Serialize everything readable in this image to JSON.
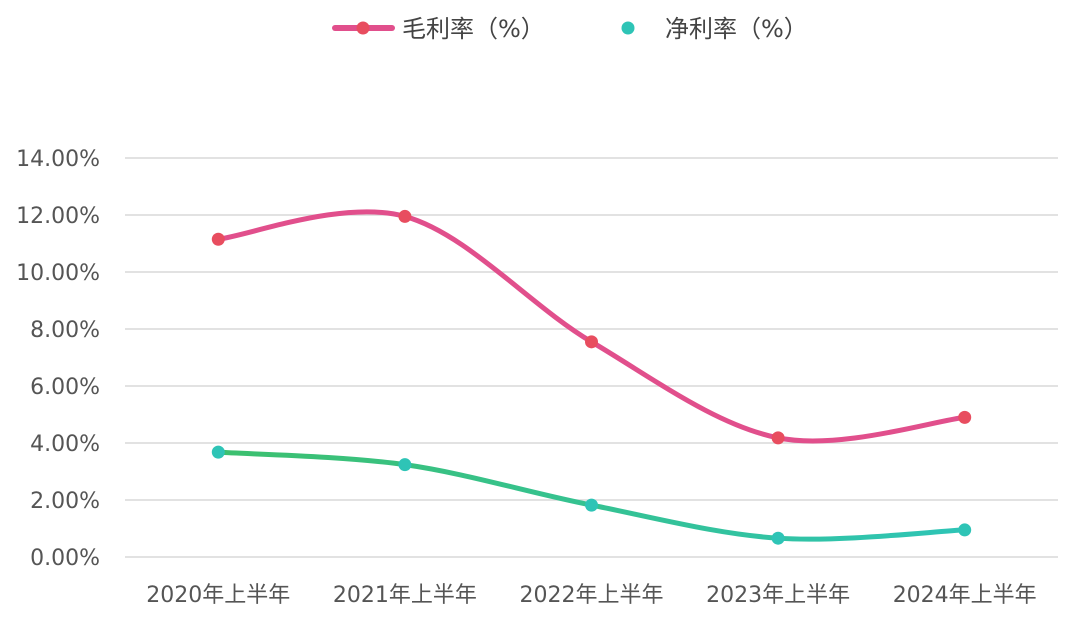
{
  "chart_data": {
    "type": "line",
    "categories": [
      "2020年上半年",
      "2021年上半年",
      "2022年上半年",
      "2023年上半年",
      "2024年上半年"
    ],
    "series": [
      {
        "name": "毛利率（%）",
        "values": [
          11.15,
          11.95,
          7.55,
          4.18,
          4.9
        ],
        "color": "#e14f8c",
        "marker_color": "#e84d5f"
      },
      {
        "name": "净利率（%）",
        "values": [
          3.68,
          3.24,
          1.82,
          0.66,
          0.95
        ],
        "color": "#33c7b0",
        "marker_color": "#2ec4b6"
      }
    ],
    "ylim": [
      0,
      14
    ],
    "yticks": [
      0,
      2,
      4,
      6,
      8,
      10,
      12,
      14
    ],
    "ytick_labels": [
      "0.00%",
      "2.00%",
      "4.00%",
      "6.00%",
      "8.00%",
      "10.00%",
      "12.00%",
      "14.00%"
    ],
    "grid": true,
    "legend_position": "top",
    "smooth": true
  }
}
